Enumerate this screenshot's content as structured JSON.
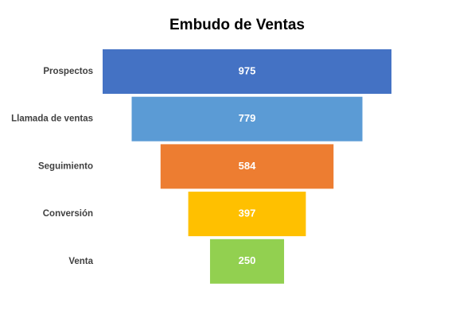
{
  "chart_data": {
    "type": "funnel",
    "title": "Embudo de Ventas",
    "categories": [
      "Prospectos",
      "Llamada de ventas",
      "Seguimiento",
      "Conversión",
      "Venta"
    ],
    "values": [
      975,
      779,
      584,
      397,
      250
    ],
    "colors": [
      "#4472c4",
      "#5b9bd5",
      "#ed7d31",
      "#ffc000",
      "#92d050"
    ]
  }
}
